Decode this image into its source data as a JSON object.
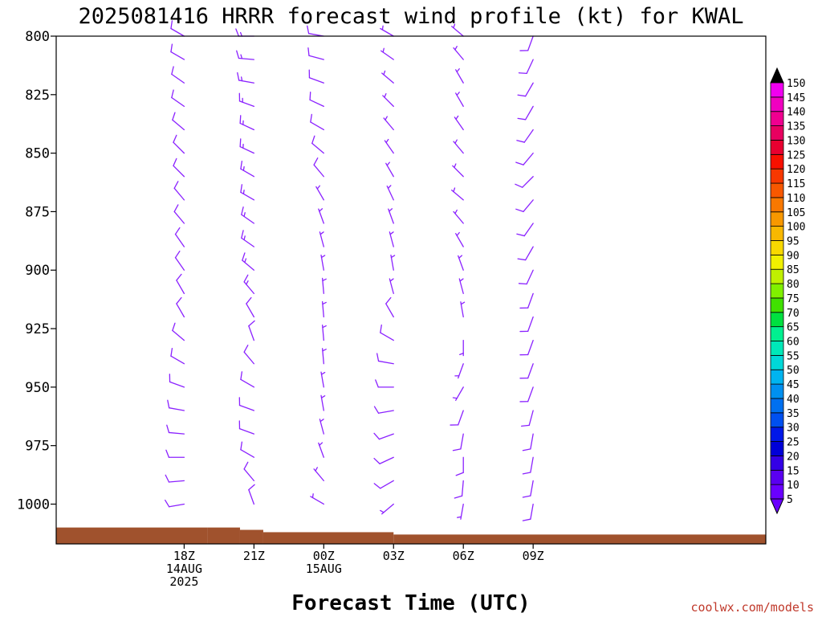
{
  "chart_data": {
    "type": "wind-barb-profile",
    "title": "2025081416 HRRR forecast wind profile (kt) for KWAL",
    "xlabel": "Forecast Time (UTC)",
    "credit": "coolwx.com/models",
    "y_axis": {
      "unit": "hPa",
      "range": [
        800,
        1017
      ],
      "ticks": [
        800,
        825,
        850,
        875,
        900,
        925,
        950,
        975,
        1000
      ],
      "tick_labels": [
        "800",
        "825",
        "850",
        "875",
        "900",
        "925",
        "950",
        "975",
        "1000"
      ]
    },
    "x_axis": {
      "range_hours": [
        -3.5,
        27
      ],
      "ticks": [
        {
          "hour": 2,
          "lines": [
            "18Z",
            "14AUG",
            "2025"
          ]
        },
        {
          "hour": 5,
          "lines": [
            "21Z"
          ]
        },
        {
          "hour": 8,
          "lines": [
            "00Z",
            "15AUG"
          ]
        },
        {
          "hour": 11,
          "lines": [
            "03Z"
          ]
        },
        {
          "hour": 14,
          "lines": [
            "06Z"
          ]
        },
        {
          "hour": 17,
          "lines": [
            "09Z"
          ]
        }
      ]
    },
    "surface_pressure": [
      {
        "from": -3.5,
        "to": 3.0,
        "p": 1010
      },
      {
        "from": 3.0,
        "to": 4.4,
        "p": 1010
      },
      {
        "from": 4.4,
        "to": 5.4,
        "p": 1011
      },
      {
        "from": 5.4,
        "to": 11.0,
        "p": 1012
      },
      {
        "from": 11.0,
        "to": 27.0,
        "p": 1013
      }
    ],
    "levels": [
      800,
      810,
      820,
      830,
      840,
      850,
      860,
      870,
      880,
      890,
      900,
      910,
      920,
      930,
      940,
      950,
      960,
      970,
      980,
      990,
      1000
    ],
    "series": [
      {
        "time": "18Z 14AUG",
        "hour": 2,
        "wind_dir_deg": [
          300,
          300,
          305,
          305,
          310,
          315,
          315,
          320,
          320,
          325,
          325,
          330,
          330,
          310,
          300,
          290,
          280,
          275,
          270,
          265,
          260
        ],
        "wind_speed_kt": [
          10,
          10,
          10,
          10,
          10,
          10,
          10,
          10,
          10,
          10,
          10,
          10,
          10,
          10,
          10,
          10,
          10,
          10,
          10,
          10,
          10
        ]
      },
      {
        "time": "21Z 14AUG",
        "hour": 5,
        "wind_dir_deg": [
          270,
          275,
          280,
          290,
          295,
          295,
          300,
          300,
          305,
          305,
          310,
          320,
          330,
          340,
          320,
          300,
          290,
          290,
          300,
          320,
          340
        ],
        "wind_speed_kt": [
          15,
          15,
          15,
          15,
          15,
          15,
          15,
          15,
          15,
          15,
          15,
          15,
          10,
          10,
          10,
          10,
          10,
          10,
          10,
          10,
          10
        ]
      },
      {
        "time": "00Z 15AUG",
        "hour": 8,
        "wind_dir_deg": [
          280,
          285,
          290,
          295,
          300,
          310,
          320,
          330,
          340,
          345,
          350,
          355,
          355,
          355,
          355,
          350,
          350,
          345,
          340,
          320,
          300
        ],
        "wind_speed_kt": [
          10,
          10,
          10,
          10,
          10,
          10,
          10,
          5,
          5,
          5,
          5,
          5,
          5,
          5,
          5,
          5,
          5,
          5,
          5,
          5,
          5
        ]
      },
      {
        "time": "03Z 15AUG",
        "hour": 11,
        "wind_dir_deg": [
          300,
          305,
          310,
          315,
          320,
          325,
          330,
          335,
          340,
          345,
          350,
          345,
          330,
          300,
          280,
          270,
          260,
          250,
          245,
          240,
          230
        ],
        "wind_speed_kt": [
          5,
          5,
          5,
          5,
          5,
          5,
          5,
          5,
          5,
          5,
          5,
          5,
          10,
          10,
          10,
          10,
          10,
          10,
          10,
          10,
          5
        ]
      },
      {
        "time": "06Z 15AUG",
        "hour": 14,
        "wind_dir_deg": [
          310,
          320,
          330,
          330,
          325,
          320,
          315,
          310,
          320,
          330,
          340,
          345,
          350,
          180,
          200,
          210,
          200,
          190,
          180,
          185,
          190
        ],
        "wind_speed_kt": [
          5,
          5,
          5,
          5,
          5,
          5,
          5,
          5,
          5,
          5,
          5,
          5,
          5,
          5,
          5,
          5,
          10,
          10,
          10,
          10,
          5
        ]
      },
      {
        "time": "09Z 15AUG",
        "hour": 17,
        "wind_dir_deg": [
          200,
          205,
          210,
          210,
          215,
          220,
          225,
          220,
          215,
          210,
          205,
          200,
          200,
          200,
          200,
          200,
          195,
          190,
          190,
          190,
          190
        ],
        "wind_speed_kt": [
          10,
          10,
          10,
          10,
          10,
          10,
          10,
          10,
          10,
          10,
          10,
          10,
          10,
          10,
          10,
          10,
          10,
          10,
          10,
          10,
          10
        ]
      }
    ],
    "colorbar": {
      "labels": [
        "5",
        "10",
        "15",
        "20",
        "25",
        "30",
        "35",
        "40",
        "45",
        "50",
        "55",
        "60",
        "65",
        "70",
        "75",
        "80",
        "85",
        "90",
        "95",
        "100",
        "105",
        "110",
        "115",
        "120",
        "125",
        "130",
        "135",
        "140",
        "145",
        "150"
      ],
      "colors": [
        "#6a00ff",
        "#5a00f0",
        "#3400e6",
        "#0000d8",
        "#0018e8",
        "#0050f0",
        "#0070f0",
        "#0090f0",
        "#00b4f0",
        "#00d8d8",
        "#00e8b8",
        "#00f090",
        "#00e040",
        "#40e000",
        "#80f000",
        "#c0f000",
        "#f0f000",
        "#f8d800",
        "#f8b800",
        "#f89800",
        "#f87800",
        "#f85800",
        "#f83800",
        "#f81000",
        "#e80030",
        "#e80060",
        "#f00090",
        "#f000c0",
        "#f000f0"
      ]
    },
    "colors": {
      "barb": "#8b22ff",
      "ground": "#a0522d"
    },
    "grid": false,
    "legend": "right"
  }
}
